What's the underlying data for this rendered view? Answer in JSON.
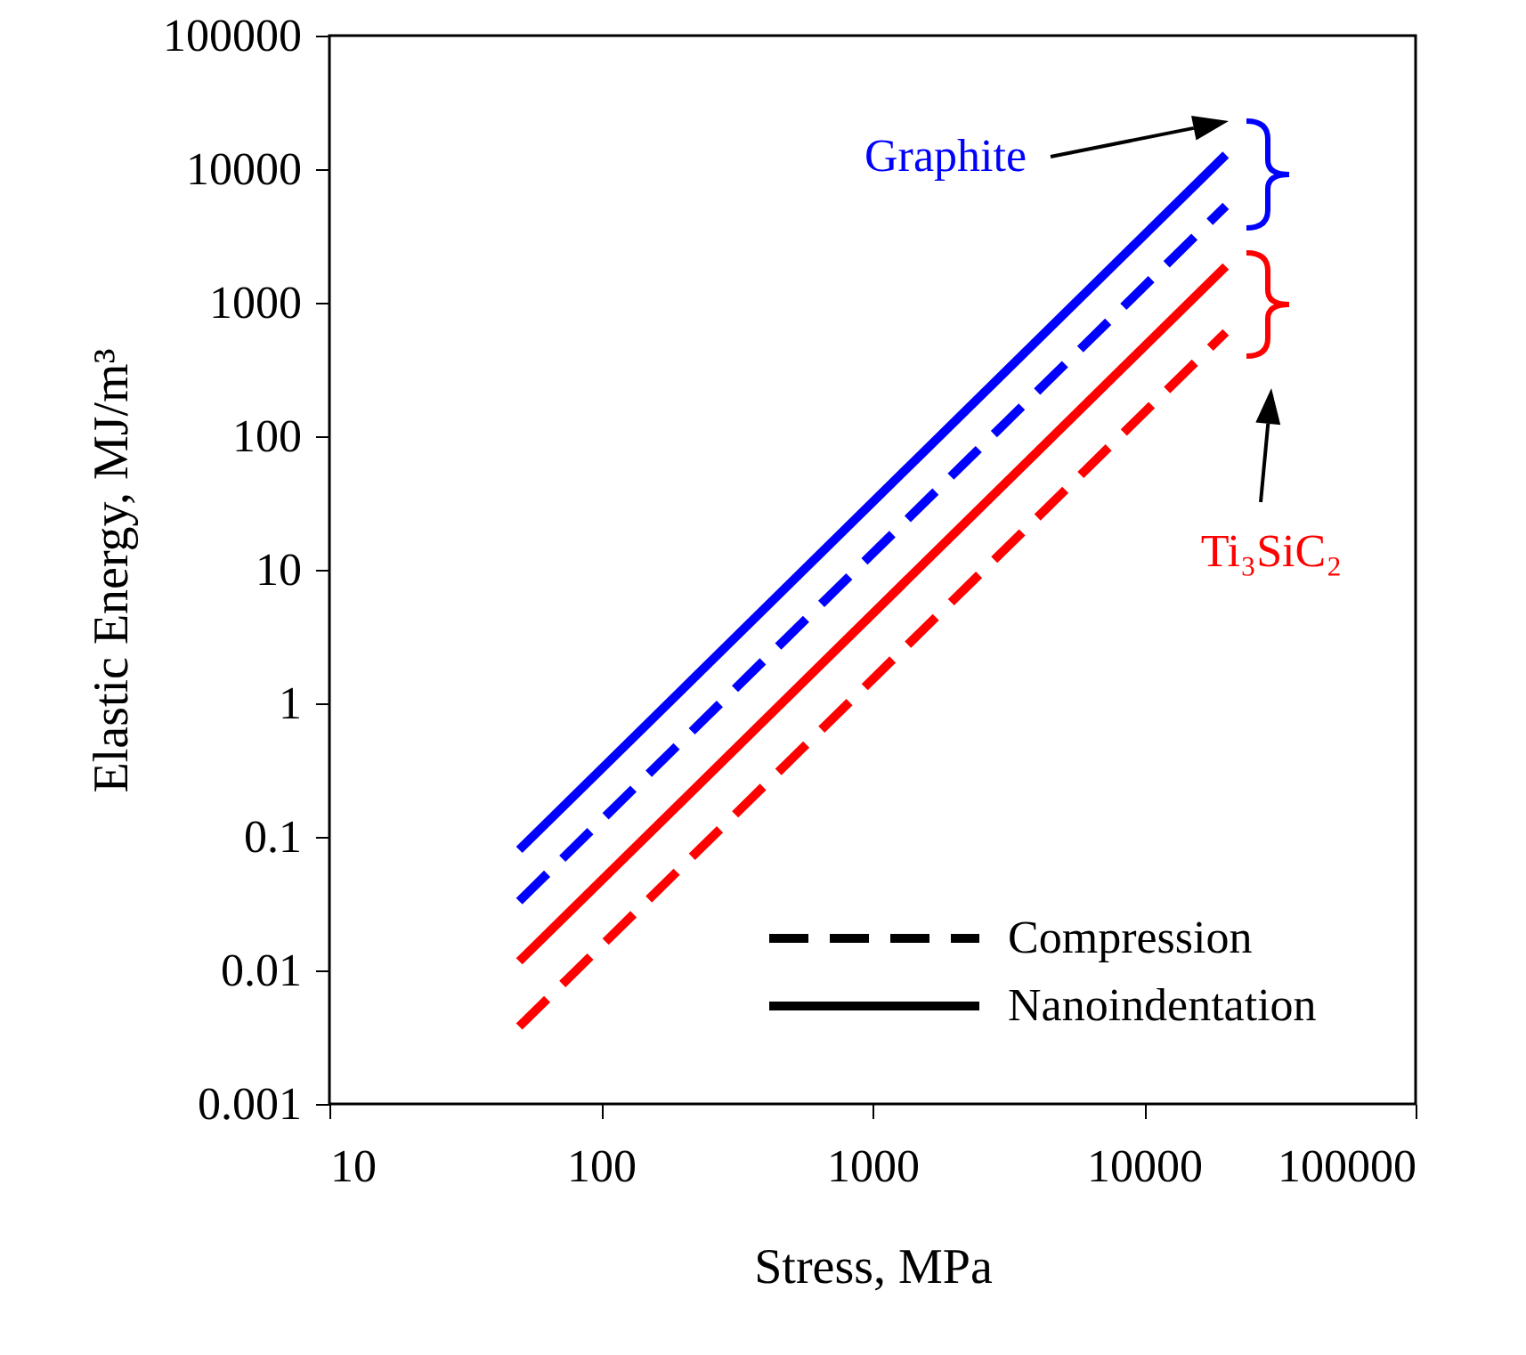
{
  "chart_data": {
    "type": "line",
    "xlabel": "Stress, MPa",
    "ylabel": "Elastic Energy, MJ/m³",
    "log": "xy",
    "xlim": [
      10,
      100000
    ],
    "xticks": [
      10,
      100,
      1000,
      10000,
      100000
    ],
    "ylim": [
      0.001,
      100000
    ],
    "yticks": [
      0.001,
      0.01,
      0.1,
      1,
      10,
      100,
      1000,
      10000,
      100000
    ],
    "x": [
      50,
      20000
    ],
    "series": [
      {
        "color": "#0000ff",
        "line_style": "solid",
        "values": [
          0.08,
          12800
        ]
      },
      {
        "color": "#0000ff",
        "line_style": "dashed",
        "values": [
          0.033,
          5300
        ]
      },
      {
        "color": "#ff0000",
        "line_style": "solid",
        "values": [
          0.0117,
          1870
        ]
      },
      {
        "color": "#ff0000",
        "line_style": "dashed",
        "values": [
          0.0038,
          600
        ]
      }
    ],
    "annotations": [
      "Graphite",
      "Ti₃SiC₂",
      "Compression",
      "Nanoindentation"
    ]
  }
}
